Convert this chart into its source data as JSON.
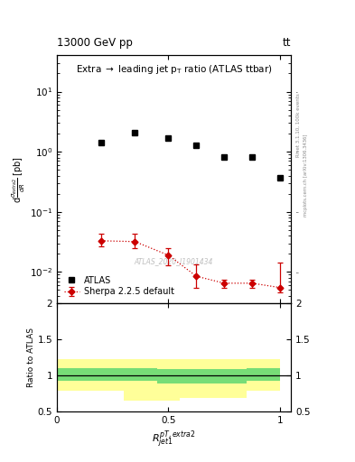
{
  "title_top": "13000 GeV pp",
  "title_top_right": "tt",
  "plot_title": "Extra → leading jet p$_T$ ratio (ATLAS ttbar)",
  "right_label_top": "Rivet 3.1.10, 100k events",
  "right_label_bottom": "mcplots.cern.ch [arXiv:1306.3436]",
  "watermark": "ATLAS_2020_I1901434",
  "xlabel": "$R_{jet1}^{pT,extra2}$",
  "ylabel_ratio": "Ratio to ATLAS",
  "atlas_x": [
    0.2,
    0.35,
    0.5,
    0.625,
    0.75,
    0.875,
    1.0
  ],
  "atlas_y": [
    1.4,
    2.1,
    1.7,
    1.3,
    0.82,
    0.82,
    0.37
  ],
  "sherpa_x": [
    0.2,
    0.35,
    0.5,
    0.625,
    0.75,
    0.875,
    1.0
  ],
  "sherpa_y": [
    0.033,
    0.032,
    0.019,
    0.0085,
    0.0065,
    0.0065,
    0.0055
  ],
  "sherpa_yerr_lo": [
    0.006,
    0.007,
    0.006,
    0.003,
    0.001,
    0.001,
    0.001
  ],
  "sherpa_yerr_hi": [
    0.01,
    0.012,
    0.006,
    0.005,
    0.001,
    0.001,
    0.009
  ],
  "ratio_x_edges": [
    0.0,
    0.15,
    0.3,
    0.45,
    0.55,
    0.7,
    0.85,
    1.0
  ],
  "ratio_green_lo": [
    0.92,
    0.92,
    0.92,
    0.88,
    0.88,
    0.88,
    0.92
  ],
  "ratio_green_hi": [
    1.1,
    1.1,
    1.1,
    1.08,
    1.08,
    1.08,
    1.1
  ],
  "ratio_yellow_lo": [
    0.78,
    0.78,
    0.65,
    0.65,
    0.68,
    0.68,
    0.78
  ],
  "ratio_yellow_hi": [
    1.22,
    1.22,
    1.22,
    1.22,
    1.22,
    1.22,
    1.22
  ],
  "ylim_main": [
    0.003,
    40
  ],
  "ylim_ratio": [
    0.5,
    2.0
  ],
  "xlim": [
    0.0,
    1.05
  ],
  "color_atlas": "#000000",
  "color_sherpa": "#cc0000",
  "color_green": "#77dd77",
  "color_yellow": "#ffff99",
  "background_color": "#ffffff"
}
